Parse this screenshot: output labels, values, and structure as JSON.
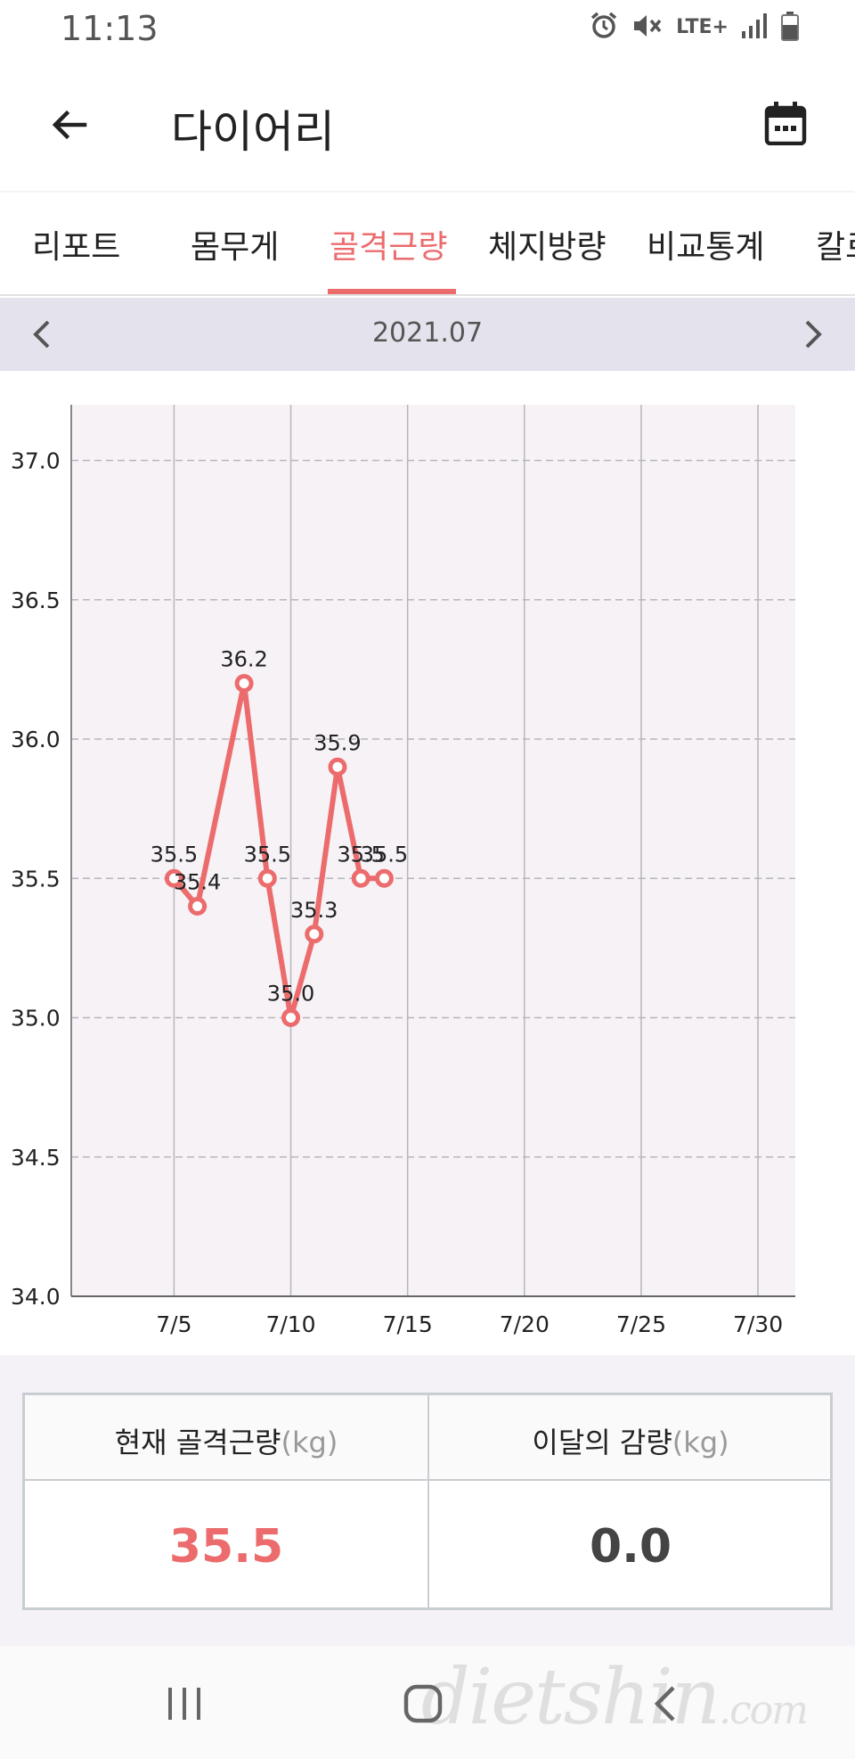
{
  "status": {
    "time": "11:13",
    "icons": [
      "alarm-icon",
      "mute-icon",
      "lte-icon",
      "signal-icon",
      "battery-icon"
    ],
    "network_label": "LTE+"
  },
  "header": {
    "title": "다이어리",
    "back_icon": "arrow-left-icon",
    "calendar_icon": "calendar-icon"
  },
  "tabs": [
    {
      "label": "리포트",
      "active": false
    },
    {
      "label": "몸무게",
      "active": false
    },
    {
      "label": "골격근량",
      "active": true
    },
    {
      "label": "체지방량",
      "active": false
    },
    {
      "label": "비교통계",
      "active": false
    },
    {
      "label": "칼로",
      "active": false
    }
  ],
  "month_nav": {
    "label": "2021.07",
    "prev_icon": "chevron-left-icon",
    "next_icon": "chevron-right-icon"
  },
  "chart_data": {
    "type": "line",
    "x_ticks": [
      "7/5",
      "7/10",
      "7/15",
      "7/20",
      "7/25",
      "7/30"
    ],
    "y_ticks": [
      "34.0",
      "34.5",
      "35.0",
      "35.5",
      "36.0",
      "36.5",
      "37.0"
    ],
    "ylim": [
      34.0,
      37.2
    ],
    "xlim": [
      0.6,
      31.6
    ],
    "grid": true,
    "points": [
      {
        "day": 5,
        "label": "7/5",
        "value": 35.5,
        "text": "35.5"
      },
      {
        "day": 6,
        "label": "7/6",
        "value": 35.4,
        "text": "35.4"
      },
      {
        "day": 8,
        "label": "7/8",
        "value": 36.2,
        "text": "36.2"
      },
      {
        "day": 9,
        "label": "7/9",
        "value": 35.5,
        "text": "35.5"
      },
      {
        "day": 10,
        "label": "7/10",
        "value": 35.0,
        "text": "35.0"
      },
      {
        "day": 11,
        "label": "7/11",
        "value": 35.3,
        "text": "35.3"
      },
      {
        "day": 12,
        "label": "7/12",
        "value": 35.9,
        "text": "35.9"
      },
      {
        "day": 13,
        "label": "7/13",
        "value": 35.5,
        "text": "35.5"
      },
      {
        "day": 14,
        "label": "7/14",
        "value": 35.5,
        "text": "35.5"
      }
    ],
    "line_color": "#ec6b6d",
    "plot_background": "#f6f2f6"
  },
  "summary": {
    "current_label": "현재 골격근량",
    "current_unit": "(kg)",
    "current_value": "35.5",
    "month_change_label": "이달의 감량",
    "month_change_unit": "(kg)",
    "month_change_value": "0.0",
    "accent_color": "#ec6b6d"
  },
  "nav_bar": {
    "recent_icon": "recent-apps-icon",
    "home_icon": "home-icon",
    "back_icon": "back-chevron-icon",
    "watermark": "dietshin",
    "watermark_suffix": ".com"
  }
}
